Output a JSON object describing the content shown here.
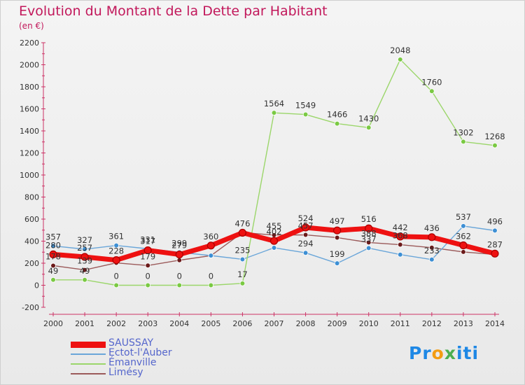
{
  "title": "Evolution du Montant de la Dette par Habitant",
  "subtitle": "(en €)",
  "logo": {
    "p1": "Pr",
    "p2": "o",
    "p3": "x",
    "p4": "iti"
  },
  "chart_data": {
    "type": "line",
    "x": [
      2000,
      2001,
      2002,
      2003,
      2004,
      2005,
      2006,
      2007,
      2008,
      2009,
      2010,
      2011,
      2012,
      2013,
      2014
    ],
    "ylim": [
      -200,
      2200
    ],
    "yticks": [
      -200,
      0,
      200,
      400,
      600,
      800,
      1000,
      1200,
      1400,
      1600,
      1800,
      2000,
      2200
    ],
    "grid": false,
    "legend_position": "bottom-left",
    "series": [
      {
        "name": "Limésy",
        "color": "#6b1a1a",
        "line": "#9b5a5a",
        "width": 1.4,
        "values": [
          178,
          139,
          203,
          179,
          227,
          269,
          478,
          455,
          457,
          432,
          388,
          368,
          341,
          302,
          279
        ],
        "labels": [
          "178",
          "139",
          "",
          "179",
          "",
          "",
          "",
          "455",
          "457",
          "",
          "388",
          "368",
          "",
          "",
          ""
        ]
      },
      {
        "name": "Ectot-l'Auber",
        "color": "#3d8fd4",
        "line": "#6aa6d9",
        "width": 1.4,
        "values": [
          357,
          327,
          361,
          331,
          299,
          269,
          235,
          340,
          294,
          199,
          337,
          278,
          233,
          537,
          496
        ],
        "labels": [
          "357",
          "327",
          "361",
          "331",
          "299",
          "",
          "235",
          "",
          "294",
          "199",
          "337",
          "",
          "233",
          "537",
          "496"
        ]
      },
      {
        "name": "Émanville",
        "color": "#7ac943",
        "line": "#9bd66a",
        "width": 1.4,
        "values": [
          49,
          49,
          0,
          0,
          0,
          0,
          17,
          1564,
          1549,
          1466,
          1430,
          2048,
          1760,
          1302,
          1268
        ],
        "labels": [
          "49",
          "49",
          "0",
          "0",
          "0",
          "0",
          "17",
          "1564",
          "1549",
          "1466",
          "1430",
          "2048",
          "1760",
          "1302",
          "1268"
        ]
      },
      {
        "name": "SAUSSAY",
        "color": "#ee1111",
        "line": "#ee1111",
        "width": 7,
        "values": [
          280,
          257,
          228,
          317,
          279,
          360,
          476,
          402,
          524,
          497,
          516,
          442,
          436,
          362,
          287
        ],
        "labels": [
          "280",
          "257",
          "228",
          "317",
          "279",
          "360",
          "476",
          "402",
          "524",
          "497",
          "516",
          "442",
          "436",
          "362",
          "287"
        ]
      }
    ]
  }
}
